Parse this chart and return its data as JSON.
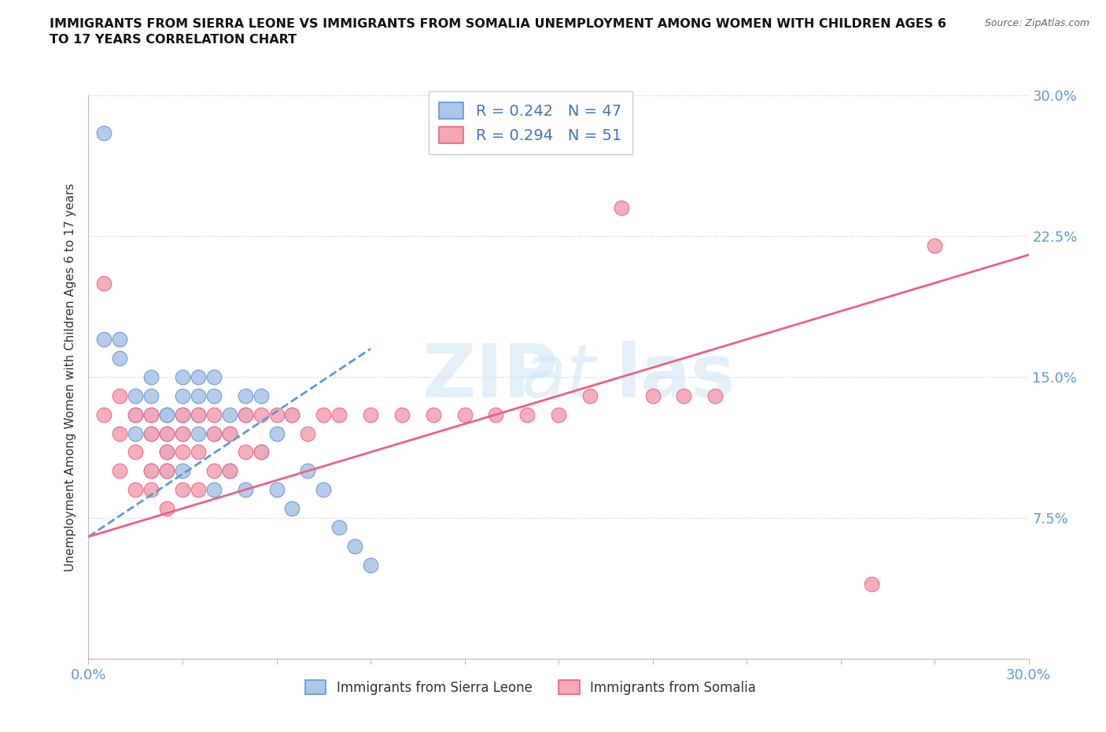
{
  "title": "IMMIGRANTS FROM SIERRA LEONE VS IMMIGRANTS FROM SOMALIA UNEMPLOYMENT AMONG WOMEN WITH CHILDREN AGES 6\nTO 17 YEARS CORRELATION CHART",
  "source": "Source: ZipAtlas.com",
  "ylabel": "Unemployment Among Women with Children Ages 6 to 17 years",
  "xmin": 0.0,
  "xmax": 0.3,
  "ymin": 0.0,
  "ymax": 0.3,
  "sierra_leone_R": 0.242,
  "sierra_leone_N": 47,
  "somalia_R": 0.294,
  "somalia_N": 51,
  "sierra_leone_color": "#aec6e8",
  "somalia_color": "#f4a7b5",
  "sierra_leone_line_color": "#5b9bd5",
  "somalia_line_color": "#f06080",
  "legend_label_sierra": "Immigrants from Sierra Leone",
  "legend_label_somalia": "Immigrants from Somalia",
  "background_color": "#ffffff",
  "grid_color": "#d0d0d0",
  "sierra_leone_x": [
    0.005,
    0.005,
    0.01,
    0.01,
    0.015,
    0.015,
    0.015,
    0.02,
    0.02,
    0.02,
    0.02,
    0.02,
    0.025,
    0.025,
    0.025,
    0.025,
    0.025,
    0.03,
    0.03,
    0.03,
    0.03,
    0.03,
    0.035,
    0.035,
    0.035,
    0.035,
    0.04,
    0.04,
    0.04,
    0.04,
    0.045,
    0.045,
    0.045,
    0.05,
    0.05,
    0.05,
    0.055,
    0.055,
    0.06,
    0.06,
    0.065,
    0.065,
    0.07,
    0.075,
    0.08,
    0.085,
    0.09
  ],
  "sierra_leone_y": [
    0.28,
    0.17,
    0.17,
    0.16,
    0.14,
    0.13,
    0.12,
    0.15,
    0.14,
    0.13,
    0.12,
    0.1,
    0.13,
    0.13,
    0.12,
    0.11,
    0.1,
    0.15,
    0.14,
    0.13,
    0.12,
    0.1,
    0.15,
    0.14,
    0.13,
    0.12,
    0.15,
    0.14,
    0.12,
    0.09,
    0.13,
    0.12,
    0.1,
    0.14,
    0.13,
    0.09,
    0.14,
    0.11,
    0.12,
    0.09,
    0.13,
    0.08,
    0.1,
    0.09,
    0.07,
    0.06,
    0.05
  ],
  "somalia_x": [
    0.005,
    0.005,
    0.01,
    0.01,
    0.01,
    0.015,
    0.015,
    0.015,
    0.02,
    0.02,
    0.02,
    0.02,
    0.025,
    0.025,
    0.025,
    0.025,
    0.03,
    0.03,
    0.03,
    0.03,
    0.035,
    0.035,
    0.035,
    0.04,
    0.04,
    0.04,
    0.045,
    0.045,
    0.05,
    0.05,
    0.055,
    0.055,
    0.06,
    0.065,
    0.07,
    0.075,
    0.08,
    0.09,
    0.1,
    0.11,
    0.12,
    0.13,
    0.14,
    0.15,
    0.16,
    0.17,
    0.18,
    0.19,
    0.2,
    0.25,
    0.27
  ],
  "somalia_y": [
    0.2,
    0.13,
    0.14,
    0.12,
    0.1,
    0.13,
    0.11,
    0.09,
    0.13,
    0.12,
    0.1,
    0.09,
    0.12,
    0.11,
    0.1,
    0.08,
    0.13,
    0.12,
    0.11,
    0.09,
    0.13,
    0.11,
    0.09,
    0.13,
    0.12,
    0.1,
    0.12,
    0.1,
    0.13,
    0.11,
    0.13,
    0.11,
    0.13,
    0.13,
    0.12,
    0.13,
    0.13,
    0.13,
    0.13,
    0.13,
    0.13,
    0.13,
    0.13,
    0.13,
    0.14,
    0.24,
    0.14,
    0.14,
    0.14,
    0.04,
    0.22
  ],
  "sl_trend_x0": 0.0,
  "sl_trend_x1": 0.09,
  "sl_trend_y0": 0.065,
  "sl_trend_y1": 0.165,
  "so_trend_x0": 0.0,
  "so_trend_x1": 0.3,
  "so_trend_y0": 0.065,
  "so_trend_y1": 0.215
}
